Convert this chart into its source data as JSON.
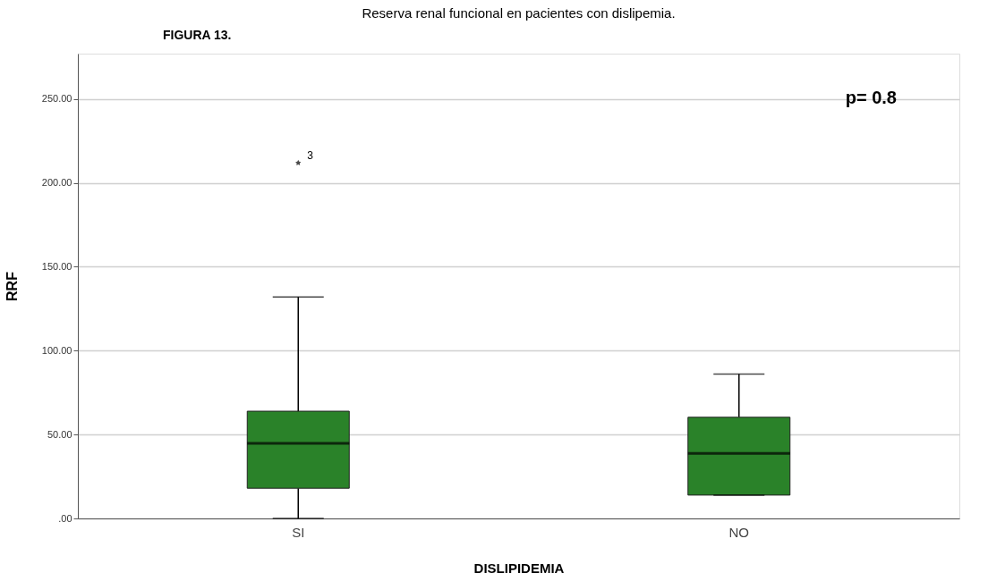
{
  "chart_data": {
    "type": "box",
    "title": "Reserva renal funcional en pacientes con dislipemia.",
    "xlabel": "DISLIPIDEMIA",
    "ylabel": "RRF",
    "categories": [
      "SI",
      "NO"
    ],
    "series": [
      {
        "color": "#2a8229",
        "boxes": [
          {
            "low": 0,
            "q1": 18,
            "median": 44.8,
            "q3": 63.9,
            "high": 132,
            "outliers": [
              211.9
            ]
          },
          {
            "low": 13.9,
            "q1": 13.9,
            "median": 38.7,
            "q3": 60.3,
            "high": 86
          }
        ]
      }
    ],
    "ylim": [
      0,
      277
    ],
    "yticks": [
      {
        "value": 0,
        "label": ".00"
      },
      {
        "value": 50,
        "label": "50.00"
      },
      {
        "value": 100,
        "label": "100.00"
      },
      {
        "value": 150,
        "label": "150.00"
      },
      {
        "value": 200,
        "label": "200.00"
      },
      {
        "value": 250,
        "label": "250.00"
      }
    ],
    "grid": "y",
    "annotations": [
      "FIGURA 13.",
      "p= 0.8",
      "3"
    ]
  }
}
